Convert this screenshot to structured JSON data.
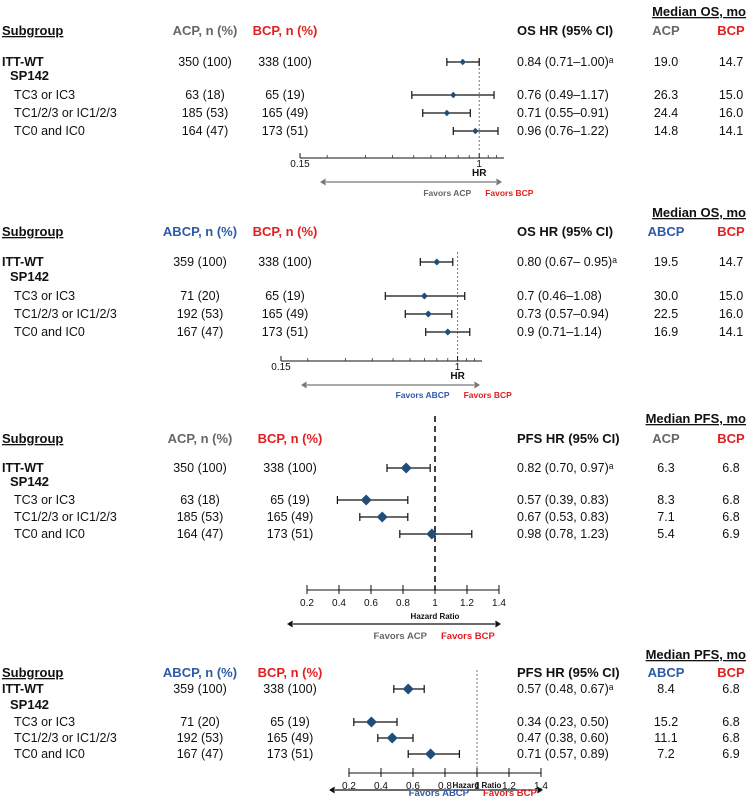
{
  "colors": {
    "marker": "#1f4e79",
    "bcp": "#e02020",
    "acp": "#666666",
    "abcp": "#2e5aa8",
    "text": "#111111",
    "axis": "#555555"
  },
  "chart_data": [
    {
      "type": "forest",
      "header_top": "Median OS, mo",
      "cols": {
        "subgroup": "Subgroup",
        "arm": "ACP, n (%)",
        "bcp": "BCP, n (%)",
        "hr": "OS HR (95% CI)",
        "m1": "ACP",
        "m2": "BCP"
      },
      "rows": [
        {
          "label": "ITT-WT",
          "n1": "350 (100)",
          "n2": "338 (100)",
          "hr_text": "0.84 (0.71–1.00)ᵃ",
          "m1": "19.0",
          "m2": "14.7",
          "hr": 0.84,
          "lo": 0.71,
          "hi": 1.0
        },
        {
          "label": "SP142",
          "header": true
        },
        {
          "label": "TC3 or IC3",
          "n1": "63 (18)",
          "n2": "65 (19)",
          "hr_text": "0.76 (0.49–1.17)",
          "m1": "26.3",
          "m2": "15.0",
          "hr": 0.76,
          "lo": 0.49,
          "hi": 1.17
        },
        {
          "label": "TC1/2/3 or IC1/2/3",
          "n1": "185 (53)",
          "n2": "165 (49)",
          "hr_text": "0.71 (0.55–0.91)",
          "m1": "24.4",
          "m2": "16.0",
          "hr": 0.71,
          "lo": 0.55,
          "hi": 0.91
        },
        {
          "label": "TC0 and IC0",
          "n1": "164 (47)",
          "n2": "173 (51)",
          "hr_text": "0.96 (0.76–1.22)",
          "m1": "14.8",
          "m2": "14.1",
          "hr": 0.96,
          "lo": 0.76,
          "hi": 1.22
        }
      ],
      "axis": {
        "scale": "log",
        "ticks": [
          0.15,
          1
        ],
        "ticklabels": [
          "0.15",
          "1"
        ],
        "xlabel": "HR",
        "range": [
          0.15,
          1.3
        ]
      },
      "favors_left": "Favors ACP",
      "favors_right": "Favors BCP"
    },
    {
      "type": "forest",
      "header_top": "Median OS, mo",
      "cols": {
        "subgroup": "Subgroup",
        "arm": "ABCP, n (%)",
        "bcp": "BCP, n (%)",
        "hr": "OS HR (95% CI)",
        "m1": "ABCP",
        "m2": "BCP"
      },
      "rows": [
        {
          "label": "ITT-WT",
          "n1": "359 (100)",
          "n2": "338 (100)",
          "hr_text": "0.80 (0.67– 0.95)ᵃ",
          "m1": "19.5",
          "m2": "14.7",
          "hr": 0.8,
          "lo": 0.67,
          "hi": 0.95
        },
        {
          "label": "SP142",
          "header": true
        },
        {
          "label": "TC3 or IC3",
          "n1": "71 (20)",
          "n2": "65 (19)",
          "hr_text": "0.7 (0.46–1.08)",
          "m1": "30.0",
          "m2": "15.0",
          "hr": 0.7,
          "lo": 0.46,
          "hi": 1.08
        },
        {
          "label": "TC1/2/3 or IC1/2/3",
          "n1": "192 (53)",
          "n2": "165 (49)",
          "hr_text": "0.73 (0.57–0.94)",
          "m1": "22.5",
          "m2": "16.0",
          "hr": 0.73,
          "lo": 0.57,
          "hi": 0.94
        },
        {
          "label": "TC0 and IC0",
          "n1": "167 (47)",
          "n2": "173 (51)",
          "hr_text": "0.9 (0.71–1.14)",
          "m1": "16.9",
          "m2": "14.1",
          "hr": 0.9,
          "lo": 0.71,
          "hi": 1.14
        }
      ],
      "axis": {
        "scale": "log",
        "ticks": [
          0.15,
          1
        ],
        "ticklabels": [
          "0.15",
          "1"
        ],
        "xlabel": "HR",
        "range": [
          0.15,
          1.3
        ]
      },
      "favors_left": "Favors ABCP",
      "favors_right": "Favors BCP"
    },
    {
      "type": "forest",
      "header_top": "Median PFS, mo",
      "cols": {
        "subgroup": "Subgroup",
        "arm": "ACP, n (%)",
        "bcp": "BCP, n (%)",
        "hr": "PFS HR (95% CI)",
        "m1": "ACP",
        "m2": "BCP"
      },
      "rows": [
        {
          "label": "ITT-WT",
          "n1": "350 (100)",
          "n2": "338 (100)",
          "hr_text": "0.82 (0.70, 0.97)ᵃ",
          "m1": "6.3",
          "m2": "6.8",
          "hr": 0.82,
          "lo": 0.7,
          "hi": 0.97
        },
        {
          "label": "SP142",
          "header": true
        },
        {
          "label": "TC3 or IC3",
          "n1": "63 (18)",
          "n2": "65 (19)",
          "hr_text": "0.57 (0.39, 0.83)",
          "m1": "8.3",
          "m2": "6.8",
          "hr": 0.57,
          "lo": 0.39,
          "hi": 0.83
        },
        {
          "label": "TC1/2/3 or IC1/2/3",
          "n1": "185 (53)",
          "n2": "165 (49)",
          "hr_text": "0.67 (0.53, 0.83)",
          "m1": "7.1",
          "m2": "6.8",
          "hr": 0.67,
          "lo": 0.53,
          "hi": 0.83
        },
        {
          "label": "TC0 and IC0",
          "n1": "164 (47)",
          "n2": "173 (51)",
          "hr_text": "0.98 (0.78, 1.23)",
          "m1": "5.4",
          "m2": "6.9",
          "hr": 0.98,
          "lo": 0.78,
          "hi": 1.23
        }
      ],
      "axis": {
        "scale": "linear",
        "ticks": [
          0.2,
          0.4,
          0.6,
          0.8,
          1,
          1.2,
          1.4
        ],
        "ticklabels": [
          "0.2",
          "0.4",
          "0.6",
          "0.8",
          "1",
          "1.2",
          "1.4"
        ],
        "xlabel": "Hazard Ratio",
        "range": [
          0.2,
          1.4
        ]
      },
      "favors_left": "Favors ACP",
      "favors_right": "Favors BCP"
    },
    {
      "type": "forest",
      "header_top": "Median PFS, mo",
      "cols": {
        "subgroup": "Subgroup",
        "arm": "ABCP, n (%)",
        "bcp": "BCP, n (%)",
        "hr": "PFS HR (95% CI)",
        "m1": "ABCP",
        "m2": "BCP"
      },
      "rows": [
        {
          "label": "ITT-WT",
          "n1": "359 (100)",
          "n2": "338 (100)",
          "hr_text": "0.57 (0.48, 0.67)ᵃ",
          "m1": "8.4",
          "m2": "6.8",
          "hr": 0.57,
          "lo": 0.48,
          "hi": 0.67
        },
        {
          "label": "SP142",
          "header": true
        },
        {
          "label": "TC3 or IC3",
          "n1": "71 (20)",
          "n2": "65 (19)",
          "hr_text": "0.34 (0.23, 0.50)",
          "m1": "15.2",
          "m2": "6.8",
          "hr": 0.34,
          "lo": 0.23,
          "hi": 0.5
        },
        {
          "label": "TC1/2/3 or IC1/2/3",
          "n1": "192 (53)",
          "n2": "165 (49)",
          "hr_text": "0.47 (0.38, 0.60)",
          "m1": "11.1",
          "m2": "6.8",
          "hr": 0.47,
          "lo": 0.38,
          "hi": 0.6
        },
        {
          "label": "TC0 and IC0",
          "n1": "167 (47)",
          "n2": "173 (51)",
          "hr_text": "0.71 (0.57, 0.89)",
          "m1": "7.2",
          "m2": "6.9",
          "hr": 0.71,
          "lo": 0.57,
          "hi": 0.89
        }
      ],
      "axis": {
        "scale": "linear",
        "ticks": [
          0.2,
          0.4,
          0.6,
          0.8,
          1,
          1.2,
          1.4
        ],
        "ticklabels": [
          "0.2",
          "0.4",
          "0.6",
          "0.8",
          "1",
          "1.2",
          "1.4"
        ],
        "xlabel": "Hazard Ratio",
        "range": [
          0.2,
          1.4
        ]
      },
      "favors_left": "Favors ABCP",
      "favors_right": "Favors BCP"
    }
  ]
}
